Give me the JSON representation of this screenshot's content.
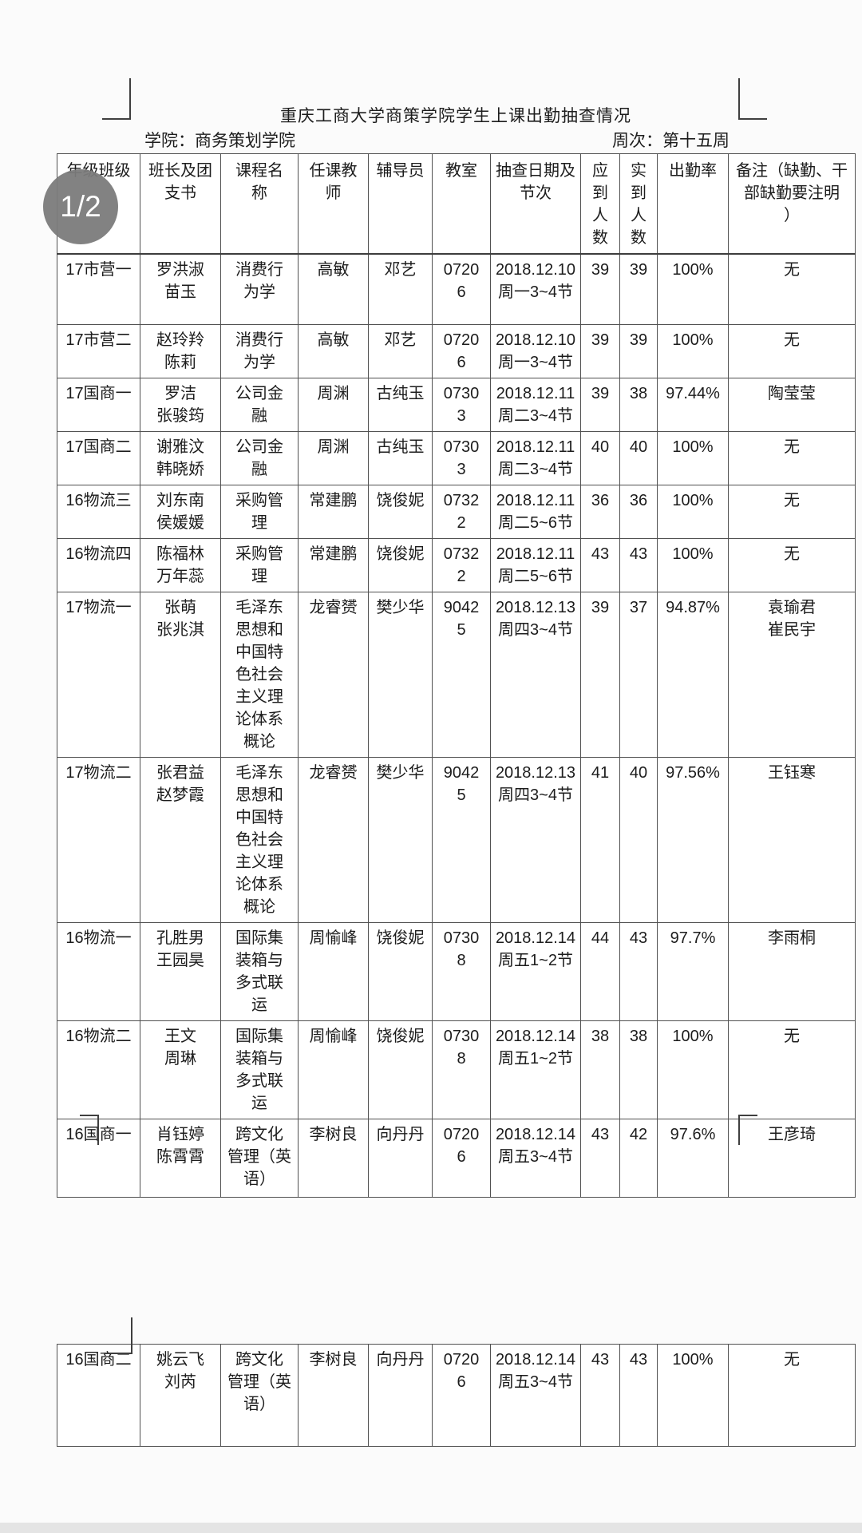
{
  "viewer": {
    "page_indicator": "1/2",
    "badge_color": "#7b7b7b"
  },
  "document": {
    "title": "重庆工商大学商策学院学生上课出勤抽查情况",
    "college": "学院：商务策划学院",
    "week": "周次：第十五周"
  },
  "table": {
    "columns": [
      "年级班级",
      "班长及团\n支书",
      "课程名\n称",
      "任课教\n师",
      "辅导员",
      "教室",
      "抽查日期及\n节次",
      "应\n到\n人\n数",
      "实\n到\n人\n数",
      "出勤率",
      "备注（缺勤、干\n部缺勤要注明\n）"
    ],
    "page1_rows": [
      [
        "17市营一",
        "罗洪淑\n苗玉",
        "消费行\n为学",
        "高敏",
        "邓艺",
        "0720\n6",
        "2018.12.10\n周一3~4节",
        "39",
        "39",
        "100%",
        "无"
      ],
      [
        "17市营二",
        "赵玲羚\n陈莉",
        "消费行\n为学",
        "高敏",
        "邓艺",
        "0720\n6",
        "2018.12.10\n周一3~4节",
        "39",
        "39",
        "100%",
        "无"
      ],
      [
        "17国商一",
        "罗洁\n张骏筠",
        "公司金\n融",
        "周渊",
        "古纯玉",
        "0730\n3",
        "2018.12.11\n周二3~4节",
        "39",
        "38",
        "97.44%",
        "陶莹莹"
      ],
      [
        "17国商二",
        "谢雅汶\n韩晓娇",
        "公司金\n融",
        "周渊",
        "古纯玉",
        "0730\n3",
        "2018.12.11\n周二3~4节",
        "40",
        "40",
        "100%",
        "无"
      ],
      [
        "16物流三",
        "刘东南\n侯媛媛",
        "采购管\n理",
        "常建鹏",
        "饶俊妮",
        "0732\n2",
        "2018.12.11\n周二5~6节",
        "36",
        "36",
        "100%",
        "无"
      ],
      [
        "16物流四",
        "陈福林\n万年蕊",
        "采购管\n理",
        "常建鹏",
        "饶俊妮",
        "0732\n2",
        "2018.12.11\n周二5~6节",
        "43",
        "43",
        "100%",
        "无"
      ],
      [
        "17物流一",
        "张萌\n张兆淇",
        "毛泽东\n思想和\n中国特\n色社会\n主义理\n论体系\n概论",
        "龙睿赟",
        "樊少华",
        "9042\n5",
        "2018.12.13\n周四3~4节",
        "39",
        "37",
        "94.87%",
        "袁瑜君\n崔民宇"
      ],
      [
        "17物流二",
        "张君益\n赵梦霞",
        "毛泽东\n思想和\n中国特\n色社会\n主义理\n论体系\n概论",
        "龙睿赟",
        "樊少华",
        "9042\n5",
        "2018.12.13\n周四3~4节",
        "41",
        "40",
        "97.56%",
        "王钰寒"
      ],
      [
        "16物流一",
        "孔胜男\n王园昊",
        "国际集\n装箱与\n多式联\n运",
        "周愉峰",
        "饶俊妮",
        "0730\n8",
        "2018.12.14\n周五1~2节",
        "44",
        "43",
        "97.7%",
        "李雨桐"
      ],
      [
        "16物流二",
        "王文\n周琳",
        "国际集\n装箱与\n多式联\n运",
        "周愉峰",
        "饶俊妮",
        "0730\n8",
        "2018.12.14\n周五1~2节",
        "38",
        "38",
        "100%",
        "无"
      ],
      [
        "16国商一",
        "肖钰婷\n陈霄霄",
        "跨文化\n管理（英\n语）",
        "李树良",
        "向丹丹",
        "0720\n6",
        "2018.12.14\n周五3~4节",
        "43",
        "42",
        "97.6%",
        "王彦琦"
      ]
    ],
    "page2_rows": [
      [
        "16国商二",
        "姚云飞\n刘芮",
        "跨文化\n管理（英\n语）",
        "李树良",
        "向丹丹",
        "0720\n6",
        "2018.12.14\n周五3~4节",
        "43",
        "43",
        "100%",
        "无"
      ]
    ]
  }
}
